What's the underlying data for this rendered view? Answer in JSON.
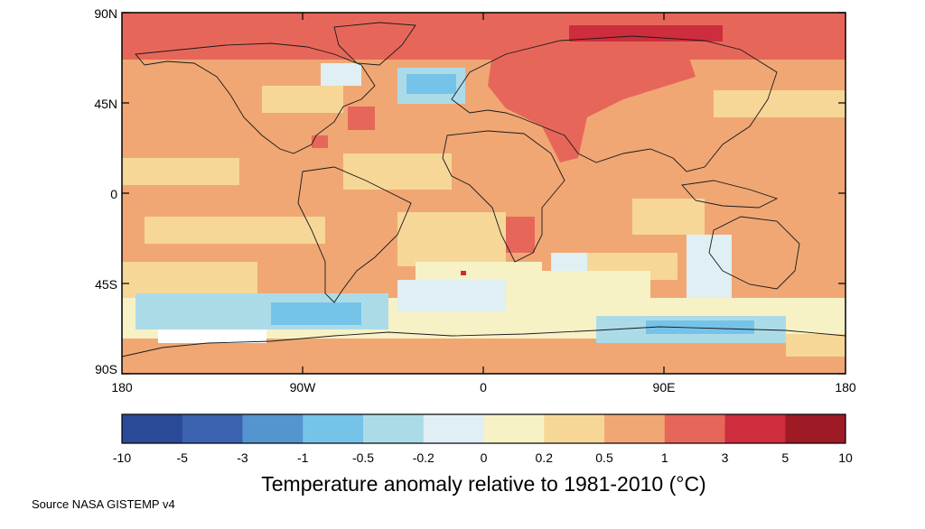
{
  "map": {
    "lat_labels": [
      "90N",
      "45N",
      "0",
      "45S",
      "90S"
    ],
    "lon_labels": [
      "180",
      "90W",
      "0",
      "90E",
      "180"
    ]
  },
  "legend": {
    "title": "Temperature anomaly relative to 1981-2010 (°C)",
    "breaks": [
      "-10",
      "-5",
      "-3",
      "-1",
      "-0.5",
      "-0.2",
      "0",
      "0.2",
      "0.5",
      "1",
      "3",
      "5",
      "10"
    ],
    "colors": [
      "#2b4a97",
      "#3b62ae",
      "#5494cf",
      "#76c3e9",
      "#acdbe8",
      "#dfeff4",
      "#f6f2c6",
      "#f6d798",
      "#f0a774",
      "#e6675a",
      "#cd2d3c",
      "#9e1b26"
    ]
  },
  "source": "Source NASA GISTEMP v4"
}
